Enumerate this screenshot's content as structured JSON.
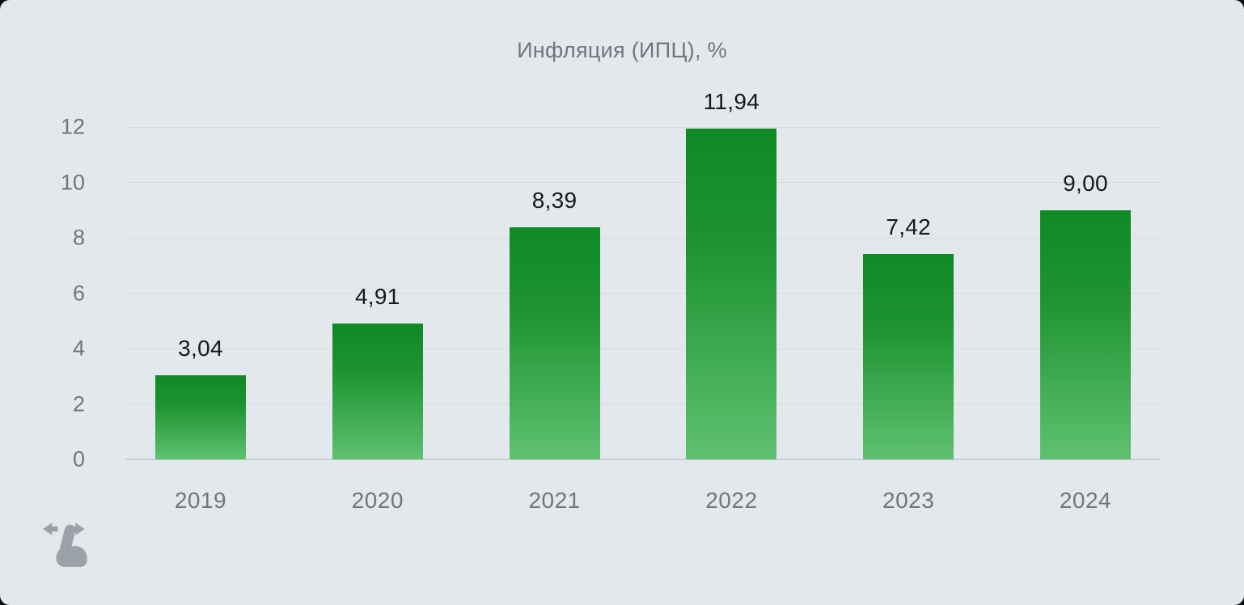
{
  "chart_data": {
    "type": "bar",
    "title": "Инфляция (ИПЦ), %",
    "categories": [
      "2019",
      "2020",
      "2021",
      "2022",
      "2023",
      "2024"
    ],
    "values": [
      3.04,
      4.91,
      8.39,
      11.94,
      7.42,
      9.0
    ],
    "value_labels": [
      "3,04",
      "4,91",
      "8,39",
      "11,94",
      "7,42",
      "9,00"
    ],
    "xlabel": "",
    "ylabel": "",
    "ylim": [
      0,
      12
    ],
    "yticks": [
      0,
      2,
      4,
      6,
      8,
      10,
      12
    ],
    "grid": "horizontal",
    "legend": "none",
    "bar_gradient_top": "#0f8a24",
    "bar_gradient_bottom": "#5fc170"
  },
  "colors": {
    "card_background": "#e3e8ec",
    "gridline": "#d6dade",
    "zero_axis": "#c9ced3",
    "title_text": "#6f7680",
    "tick_text": "#6f7680",
    "value_text": "#17191c",
    "hint_icon": "#9aa1a8"
  },
  "icons": {
    "swipe_hint": "drag-horizontal-hand-icon"
  }
}
